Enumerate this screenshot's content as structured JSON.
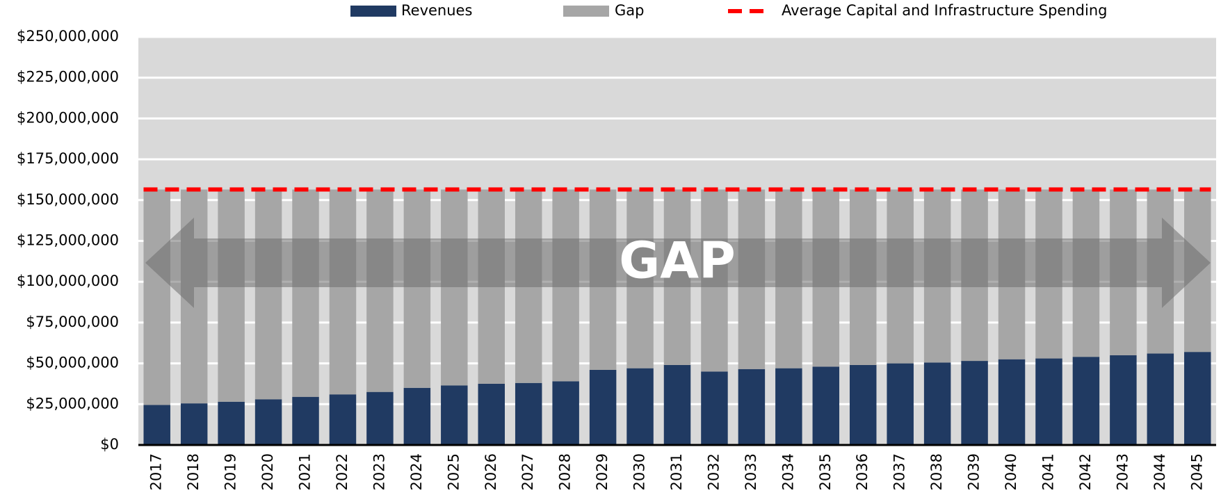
{
  "chart_data": {
    "type": "bar",
    "stacked": true,
    "annotation": "GAP",
    "categories": [
      "2017",
      "2018",
      "2019",
      "2020",
      "2021",
      "2022",
      "2023",
      "2024",
      "2025",
      "2026",
      "2027",
      "2028",
      "2029",
      "2030",
      "2031",
      "2032",
      "2033",
      "2034",
      "2035",
      "2036",
      "2037",
      "2038",
      "2039",
      "2040",
      "2041",
      "2042",
      "2043",
      "2044",
      "2045"
    ],
    "series": [
      {
        "name": "Revenues",
        "color": "#203a62",
        "values": [
          24500000,
          25500000,
          26500000,
          28000000,
          29500000,
          31000000,
          32500000,
          35000000,
          36500000,
          37500000,
          38000000,
          39000000,
          46000000,
          47000000,
          49000000,
          45000000,
          46500000,
          47000000,
          48000000,
          49000000,
          50000000,
          50500000,
          51500000,
          52500000,
          53000000,
          54000000,
          55000000,
          56000000,
          57000000
        ]
      },
      {
        "name": "Gap",
        "color": "#a6a6a6",
        "values": [
          132000000,
          131000000,
          130000000,
          128500000,
          127000000,
          125500000,
          124000000,
          121500000,
          120000000,
          119000000,
          118500000,
          117500000,
          110500000,
          109500000,
          107500000,
          111500000,
          110000000,
          109500000,
          108500000,
          107500000,
          106500000,
          106000000,
          105000000,
          104000000,
          103500000,
          102500000,
          101500000,
          100500000,
          99500000
        ]
      }
    ],
    "line": {
      "name": "Average Capital and Infrastructure Spending",
      "color": "#ff0000",
      "value": 156500000
    },
    "ylim": [
      0,
      250000000
    ],
    "yticks": [
      {
        "value": 0,
        "label": "$0"
      },
      {
        "value": 25000000,
        "label": "$25,000,000"
      },
      {
        "value": 50000000,
        "label": "$50,000,000"
      },
      {
        "value": 75000000,
        "label": "$75,000,000"
      },
      {
        "value": 100000000,
        "label": "$100,000,000"
      },
      {
        "value": 125000000,
        "label": "$125,000,000"
      },
      {
        "value": 150000000,
        "label": "$150,000,000"
      },
      {
        "value": 175000000,
        "label": "$175,000,000"
      },
      {
        "value": 200000000,
        "label": "$200,000,000"
      },
      {
        "value": 225000000,
        "label": "$225,000,000"
      },
      {
        "value": 250000000,
        "label": "$250,000,000"
      }
    ],
    "grid": true
  }
}
